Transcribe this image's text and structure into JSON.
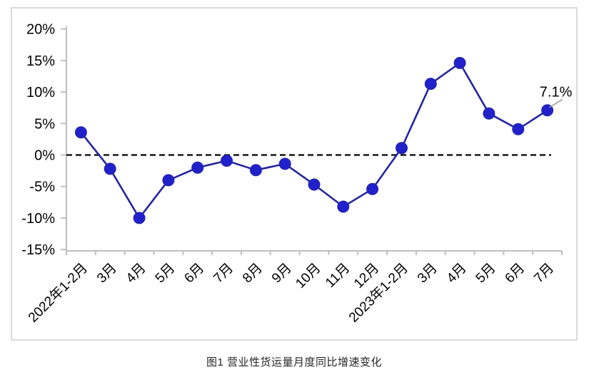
{
  "chart_data": {
    "type": "line",
    "caption": "图1 营业性货运量月度同比增速变化",
    "categories": [
      "2022年1-2月",
      "3月",
      "4月",
      "5月",
      "6月",
      "7月",
      "8月",
      "9月",
      "10月",
      "11月",
      "12月",
      "2023年1-2月",
      "3月",
      "4月",
      "5月",
      "6月",
      "7月"
    ],
    "series": [
      {
        "name": "营业性货运量月度同比增速",
        "values": [
          3.6,
          -2.2,
          -10.0,
          -4.0,
          -2.0,
          -0.9,
          -2.4,
          -1.4,
          -4.7,
          -8.2,
          -5.4,
          1.1,
          11.3,
          14.6,
          6.6,
          4.1,
          7.1
        ]
      }
    ],
    "ylim": [
      -15,
      20
    ],
    "ytick_step": 5,
    "ytick_suffix": "%",
    "ytick_labels": [
      "20%",
      "15%",
      "10%",
      "5%",
      "0%",
      "-5%",
      "-10%",
      "-15%"
    ],
    "zero_line_style": "dashed",
    "annotation": {
      "text": "7.1%",
      "point_index": 16
    },
    "legend": "none",
    "grid": false,
    "colors": {
      "line": "#26269e",
      "marker": "#2121cc",
      "axis": "#bfbfbf",
      "zero_line": "#000000",
      "text": "#000000",
      "annotation_leader": "#9e9e9e"
    }
  }
}
